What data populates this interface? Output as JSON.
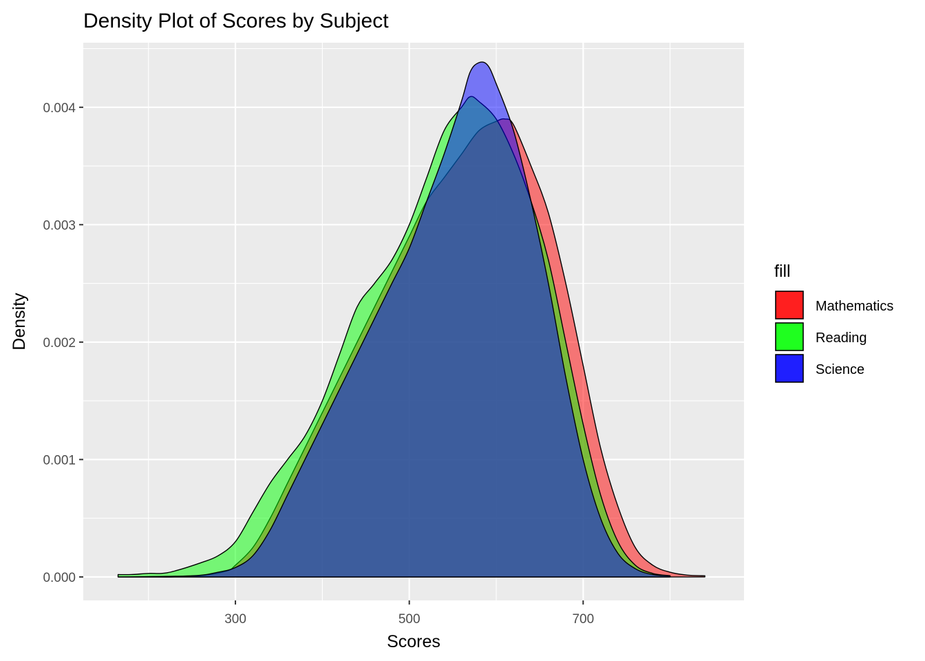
{
  "chart_data": {
    "type": "area",
    "subtype": "density",
    "title": "Density Plot of Scores by Subject",
    "xlabel": "Scores",
    "ylabel": "Density",
    "xlim": [
      125,
      885
    ],
    "ylim": [
      -0.0002,
      0.00455
    ],
    "x_ticks": [
      300,
      500,
      700
    ],
    "x_minor_ticks": [
      200,
      400,
      600,
      800
    ],
    "y_ticks": [
      0,
      0.001,
      0.002,
      0.003,
      0.004
    ],
    "y_tick_labels": [
      "0.000",
      "0.001",
      "0.002",
      "0.003",
      "0.004"
    ],
    "grid": true,
    "legend": {
      "title": "fill",
      "position": "right"
    },
    "fill_opacity": 0.5,
    "series": [
      {
        "name": "Mathematics",
        "color": "#ff0000",
        "legend_color": "#ff1f1f",
        "x": [
          165,
          200,
          230,
          260,
          290,
          300,
          320,
          340,
          360,
          380,
          400,
          420,
          440,
          460,
          480,
          500,
          520,
          540,
          560,
          580,
          600,
          610,
          620,
          640,
          660,
          680,
          700,
          720,
          740,
          760,
          780,
          800,
          820,
          840
        ],
        "values": [
          0,
          0,
          0,
          1e-05,
          5e-05,
          0.0001,
          0.00025,
          0.0005,
          0.0008,
          0.0011,
          0.0014,
          0.0017,
          0.002,
          0.0023,
          0.0026,
          0.0029,
          0.0032,
          0.0034,
          0.0036,
          0.0038,
          0.00388,
          0.0039,
          0.00385,
          0.0035,
          0.0031,
          0.0025,
          0.0018,
          0.0011,
          0.0006,
          0.00025,
          0.0001,
          4e-05,
          1.5e-05,
          1e-05
        ]
      },
      {
        "name": "Reading",
        "color": "#00ff00",
        "legend_color": "#1fff1f",
        "x": [
          165,
          180,
          200,
          215,
          230,
          260,
          280,
          300,
          320,
          340,
          360,
          380,
          400,
          420,
          440,
          460,
          480,
          500,
          520,
          540,
          560,
          570,
          580,
          600,
          620,
          640,
          660,
          680,
          700,
          720,
          740,
          760,
          780,
          800
        ],
        "values": [
          2e-05,
          2e-05,
          3e-05,
          3e-05,
          5e-05,
          0.00012,
          0.00018,
          0.0003,
          0.00055,
          0.0008,
          0.001,
          0.0012,
          0.0015,
          0.0019,
          0.0023,
          0.0025,
          0.0027,
          0.003,
          0.0034,
          0.0038,
          0.004,
          0.00409,
          0.00405,
          0.0039,
          0.0036,
          0.0032,
          0.0027,
          0.002,
          0.0013,
          0.0007,
          0.0003,
          0.0001,
          3e-05,
          1e-05
        ]
      },
      {
        "name": "Science",
        "color": "#0000ff",
        "legend_color": "#1f1fff",
        "x": [
          165,
          250,
          280,
          300,
          320,
          340,
          360,
          380,
          400,
          420,
          440,
          460,
          480,
          500,
          520,
          540,
          560,
          570,
          580,
          590,
          600,
          620,
          640,
          660,
          680,
          700,
          720,
          740,
          760,
          780,
          800
        ],
        "values": [
          0,
          1e-05,
          4e-05,
          8e-05,
          0.00018,
          0.0004,
          0.0007,
          0.001,
          0.0013,
          0.0016,
          0.0019,
          0.0022,
          0.0025,
          0.0028,
          0.0032,
          0.0036,
          0.00405,
          0.0043,
          0.00438,
          0.00436,
          0.0042,
          0.0038,
          0.0032,
          0.0025,
          0.0017,
          0.001,
          0.0005,
          0.0002,
          7e-05,
          2e-05,
          1e-05
        ]
      }
    ]
  }
}
